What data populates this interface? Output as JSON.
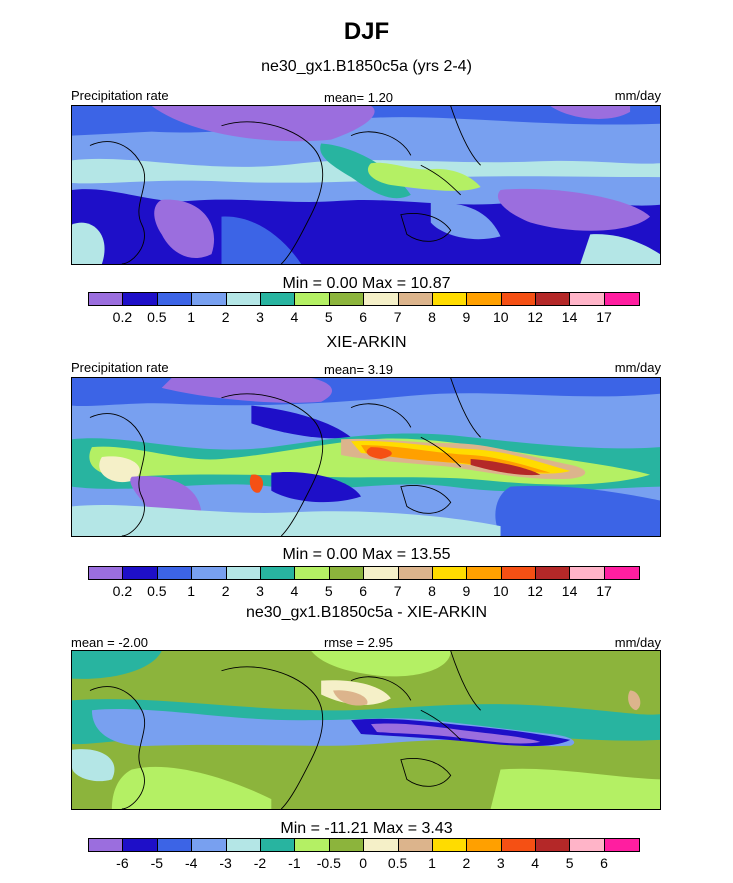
{
  "figure": {
    "title": "DJF",
    "panels": [
      {
        "subtitle": "ne30_gx1.B1850c5a (yrs 2-4)",
        "left_label": "Precipitation rate",
        "center_label": "mean=   1.20",
        "right_label": "mm/day",
        "stats": "Min =   0.00 Max =  10.87",
        "colorbar": {
          "labels": [
            "0.2",
            "0.5",
            "1",
            "2",
            "3",
            "4",
            "5",
            "6",
            "7",
            "8",
            "9",
            "10",
            "12",
            "14",
            "17"
          ],
          "colors": [
            "#9b6ede",
            "#1e0fc8",
            "#3c64e6",
            "#78a0f0",
            "#b4e6e6",
            "#28b4a0",
            "#b4f064",
            "#8cb43c",
            "#f5f0c8",
            "#dcb48c",
            "#ffdc00",
            "#ffa000",
            "#f55014",
            "#b42828",
            "#ffb4c8",
            "#ff1ea0"
          ]
        },
        "field": "model"
      },
      {
        "subtitle": "XIE-ARKIN",
        "left_label": "Precipitation rate",
        "center_label": "mean=   3.19",
        "right_label": "mm/day",
        "stats": "Min =   0.00 Max =  13.55",
        "colorbar": {
          "labels": [
            "0.2",
            "0.5",
            "1",
            "2",
            "3",
            "4",
            "5",
            "6",
            "7",
            "8",
            "9",
            "10",
            "12",
            "14",
            "17"
          ],
          "colors": [
            "#9b6ede",
            "#1e0fc8",
            "#3c64e6",
            "#78a0f0",
            "#b4e6e6",
            "#28b4a0",
            "#b4f064",
            "#8cb43c",
            "#f5f0c8",
            "#dcb48c",
            "#ffdc00",
            "#ffa000",
            "#f55014",
            "#b42828",
            "#ffb4c8",
            "#ff1ea0"
          ]
        },
        "field": "obs"
      },
      {
        "subtitle": "ne30_gx1.B1850c5a - XIE-ARKIN",
        "left_label": "mean =  -2.00",
        "center_label": "rmse =   2.95",
        "right_label": "mm/day",
        "stats": "Min = -11.21 Max =   3.43",
        "colorbar": {
          "labels": [
            "-6",
            "-5",
            "-4",
            "-3",
            "-2",
            "-1",
            "-0.5",
            "0",
            "0.5",
            "1",
            "2",
            "3",
            "4",
            "5",
            "6"
          ],
          "colors": [
            "#9b6ede",
            "#1e0fc8",
            "#3c64e6",
            "#78a0f0",
            "#b4e6e6",
            "#28b4a0",
            "#b4f064",
            "#8cb43c",
            "#f5f0c8",
            "#dcb48c",
            "#ffdc00",
            "#ffa000",
            "#f55014",
            "#b42828",
            "#ffb4c8",
            "#ff1ea0"
          ]
        },
        "field": "diff"
      }
    ]
  }
}
